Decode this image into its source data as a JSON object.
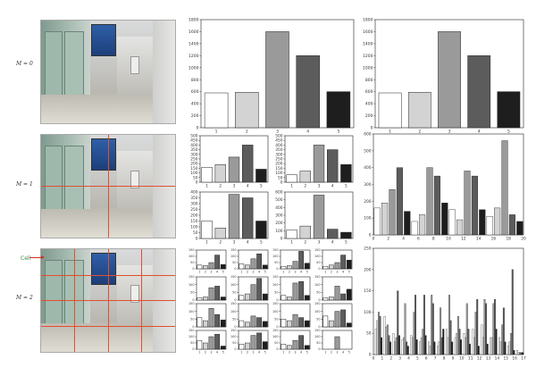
{
  "rows": [
    {
      "label": "M = 0"
    },
    {
      "label": "M = 1"
    },
    {
      "label": "M = 2"
    }
  ],
  "annotation": {
    "text": "Cell"
  },
  "colors": [
    "#ffffff",
    "#d3d3d3",
    "#9a9a9a",
    "#5c5c5c",
    "#1e1e1e"
  ],
  "chart_data": [
    {
      "id": "m0-hist",
      "type": "bar",
      "categories": [
        1,
        2,
        3,
        4,
        5
      ],
      "values": [
        580,
        590,
        1600,
        1200,
        600
      ],
      "yticks": [
        0,
        200,
        400,
        600,
        800,
        1000,
        1200,
        1400,
        1600,
        1800
      ],
      "ylim": [
        0,
        1800
      ]
    },
    {
      "id": "m0-concat",
      "type": "bar",
      "categories": [
        1,
        2,
        3,
        4,
        5
      ],
      "values": [
        580,
        590,
        1600,
        1200,
        600
      ],
      "yticks": [
        0,
        200,
        400,
        600,
        800,
        1000,
        1200,
        1400,
        1600,
        1800
      ],
      "ylim": [
        0,
        1800
      ]
    },
    {
      "id": "m1-c1",
      "type": "bar",
      "categories": [
        1,
        2,
        3,
        4,
        5
      ],
      "values": [
        160,
        190,
        270,
        400,
        140
      ],
      "yticks": [
        0,
        50,
        100,
        150,
        200,
        250,
        300,
        350,
        400,
        450,
        500
      ],
      "ylim": [
        0,
        500
      ]
    },
    {
      "id": "m1-c2",
      "type": "bar",
      "categories": [
        1,
        2,
        3,
        4,
        5
      ],
      "values": [
        80,
        120,
        400,
        350,
        190
      ],
      "yticks": [
        0,
        50,
        100,
        150,
        200,
        250,
        300,
        350,
        400,
        450,
        500
      ],
      "ylim": [
        0,
        500
      ]
    },
    {
      "id": "m1-c3",
      "type": "bar",
      "categories": [
        1,
        2,
        3,
        4,
        5
      ],
      "values": [
        150,
        90,
        380,
        350,
        150
      ],
      "yticks": [
        0,
        50,
        100,
        150,
        200,
        250,
        300,
        350,
        400
      ],
      "ylim": [
        0,
        400
      ]
    },
    {
      "id": "m1-c4",
      "type": "bar",
      "categories": [
        1,
        2,
        3,
        4,
        5
      ],
      "values": [
        110,
        160,
        560,
        120,
        80
      ],
      "yticks": [
        0,
        100,
        200,
        300,
        400,
        500,
        600
      ],
      "ylim": [
        0,
        600
      ]
    },
    {
      "id": "m1-concat",
      "type": "bar",
      "x_ticks": [
        0,
        2,
        4,
        6,
        8,
        10,
        12,
        14,
        16,
        18,
        20
      ],
      "values": [
        160,
        190,
        270,
        400,
        140,
        80,
        120,
        400,
        350,
        190,
        150,
        90,
        380,
        350,
        150,
        110,
        160,
        560,
        120,
        80
      ],
      "yticks": [
        0,
        100,
        200,
        300,
        400,
        500,
        600
      ],
      "ylim": [
        0,
        600
      ],
      "xlim": [
        0,
        20
      ]
    },
    {
      "id": "m2-cells",
      "type": "bar",
      "grid": "4x4",
      "yticks": [
        0,
        50,
        100,
        150
      ],
      "cells": [
        [
          30,
          25,
          50,
          110,
          35
        ],
        [
          40,
          30,
          80,
          120,
          30
        ],
        [
          20,
          25,
          60,
          140,
          45
        ],
        [
          20,
          30,
          50,
          110,
          70
        ],
        [
          15,
          20,
          80,
          90,
          20
        ],
        [
          30,
          40,
          100,
          140,
          40
        ],
        [
          30,
          20,
          110,
          120,
          30
        ],
        [
          15,
          20,
          90,
          40,
          70
        ],
        [
          60,
          40,
          120,
          80,
          45
        ],
        [
          40,
          30,
          70,
          60,
          35
        ],
        [
          50,
          40,
          80,
          60,
          40
        ],
        [
          70,
          40,
          100,
          110,
          25
        ],
        [
          70,
          50,
          100,
          120,
          25
        ],
        [
          40,
          50,
          110,
          130,
          60
        ],
        [
          40,
          30,
          70,
          110,
          30
        ],
        [
          0,
          0,
          100,
          0,
          0
        ]
      ]
    },
    {
      "id": "m2-concat",
      "type": "bar",
      "x_ticks": [
        0,
        1,
        2,
        3,
        4,
        5,
        6,
        7,
        8,
        9,
        10,
        11,
        12,
        13,
        14,
        15,
        16,
        17
      ],
      "yticks": [
        0,
        50,
        100,
        150,
        200,
        250
      ],
      "ylim": [
        0,
        250
      ],
      "xlim": [
        0,
        17
      ],
      "groups": [
        [
          60,
          80,
          100,
          90,
          40
        ],
        [
          90,
          65,
          70,
          45,
          30
        ],
        [
          50,
          30,
          40,
          150,
          45
        ],
        [
          35,
          40,
          120,
          30,
          20
        ],
        [
          45,
          40,
          100,
          140,
          35
        ],
        [
          30,
          40,
          60,
          140,
          45
        ],
        [
          30,
          20,
          140,
          120,
          30
        ],
        [
          20,
          30,
          110,
          40,
          60
        ],
        [
          60,
          40,
          140,
          80,
          30
        ],
        [
          40,
          50,
          90,
          60,
          35
        ],
        [
          50,
          40,
          120,
          60,
          25
        ],
        [
          60,
          40,
          100,
          130,
          20
        ],
        [
          70,
          40,
          130,
          120,
          25
        ],
        [
          40,
          40,
          120,
          130,
          60
        ],
        [
          40,
          30,
          70,
          110,
          30
        ],
        [
          20,
          30,
          50,
          200,
          10
        ],
        [
          10,
          5,
          5,
          5,
          5
        ]
      ]
    }
  ]
}
